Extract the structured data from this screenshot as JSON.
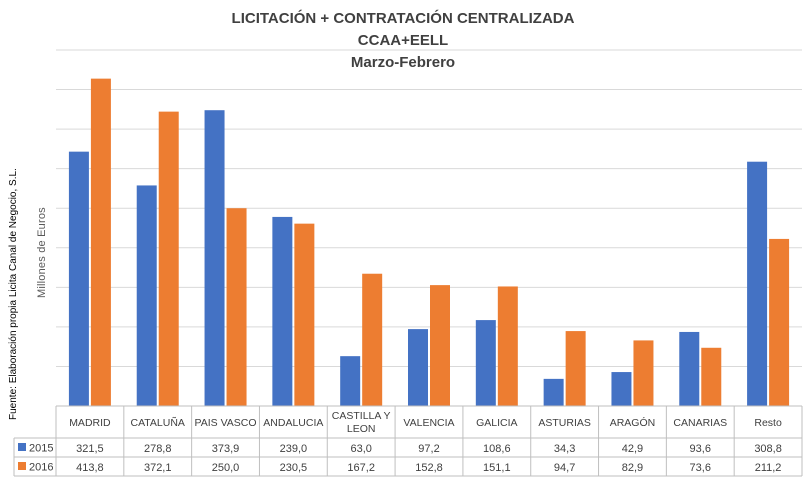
{
  "chart_data": {
    "type": "bar",
    "title": "LICITACIÓN + CONTRATACIÓN CENTRALIZADA",
    "subtitle_lines": [
      "CCAA+EELL",
      "Marzo-Febrero"
    ],
    "ylabel": "Millones de Euros",
    "side_note": "Fuente: Elaboración propia Licita Canal de Negocio, S.L.",
    "ylim": [
      0,
      450
    ],
    "grid": true,
    "legend": "table-left",
    "categories": [
      "MADRID",
      "CATALUÑA",
      "PAIS VASCO",
      "ANDALUCIA",
      "CASTILLA Y LEON",
      "VALENCIA",
      "GALICIA",
      "ASTURIAS",
      "ARAGÓN",
      "CANARIAS",
      "Resto"
    ],
    "category_label_lines": [
      [
        "MADRID"
      ],
      [
        "CATALUÑA"
      ],
      [
        "PAIS VASCO"
      ],
      [
        "ANDALUCIA"
      ],
      [
        "CASTILLA Y",
        "LEON"
      ],
      [
        "VALENCIA"
      ],
      [
        "GALICIA"
      ],
      [
        "ASTURIAS"
      ],
      [
        "ARAGÓN"
      ],
      [
        "CANARIAS"
      ],
      [
        "Resto"
      ]
    ],
    "series": [
      {
        "name": "2015",
        "color": "#4472C4",
        "values": [
          321.5,
          278.8,
          373.9,
          239.0,
          63.0,
          97.2,
          108.6,
          34.3,
          42.9,
          93.6,
          308.8
        ],
        "labels": [
          "321,5",
          "278,8",
          "373,9",
          "239,0",
          "63,0",
          "97,2",
          "108,6",
          "34,3",
          "42,9",
          "93,6",
          "308,8"
        ]
      },
      {
        "name": "2016",
        "color": "#ED7D31",
        "values": [
          413.8,
          372.1,
          250.0,
          230.5,
          167.2,
          152.8,
          151.1,
          94.7,
          82.9,
          73.6,
          211.2
        ],
        "labels": [
          "413,8",
          "372,1",
          "250,0",
          "230,5",
          "167,2",
          "152,8",
          "151,1",
          "94,7",
          "82,9",
          "73,6",
          "211,2"
        ]
      }
    ]
  }
}
